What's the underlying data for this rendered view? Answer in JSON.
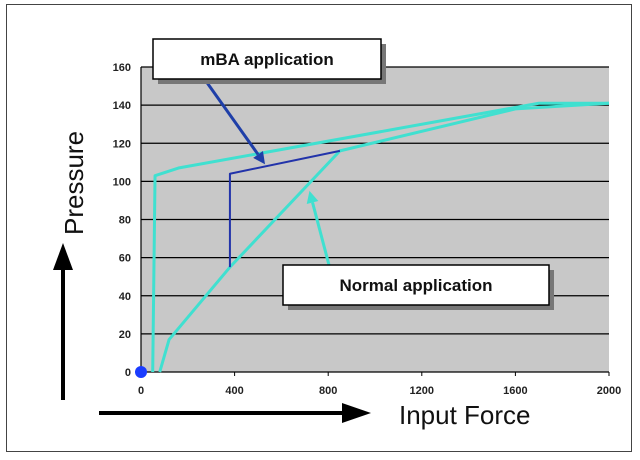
{
  "chart_data": {
    "type": "line",
    "xlabel": "Input Force",
    "ylabel": "Pressure",
    "xlim": [
      0,
      2000
    ],
    "ylim": [
      0,
      160
    ],
    "xticks": [
      "0",
      "400",
      "800",
      "1200",
      "1600",
      "2000"
    ],
    "yticks": [
      "0",
      "20",
      "40",
      "60",
      "80",
      "100",
      "120",
      "140",
      "160"
    ],
    "grid": "horizontal",
    "plot_background": "#c8c8c8",
    "series": [
      {
        "color": "#40e0d0",
        "points": [
          [
            50,
            0
          ],
          [
            60,
            103
          ],
          [
            160,
            107
          ],
          [
            1700,
            141
          ],
          [
            2000,
            141
          ]
        ]
      },
      {
        "color": "#40e0d0",
        "points": [
          [
            80,
            0
          ],
          [
            120,
            17
          ],
          [
            380,
            55
          ],
          [
            850,
            116
          ],
          [
            1600,
            138
          ],
          [
            2000,
            141
          ]
        ]
      },
      {
        "color": "#2233aa",
        "points": [
          [
            380,
            55
          ],
          [
            380,
            104
          ],
          [
            850,
            116
          ]
        ]
      }
    ],
    "origin_marker": {
      "x": 0,
      "y": 0,
      "color": "#1a3cff"
    },
    "annotations": [
      {
        "text": "mBA application",
        "arrow_to": [
          530,
          109
        ],
        "arrow_color": "#1f3fa8"
      },
      {
        "text": "Normal application",
        "arrow_to": [
          720,
          95
        ],
        "arrow_color": "#40e0d0"
      }
    ]
  }
}
